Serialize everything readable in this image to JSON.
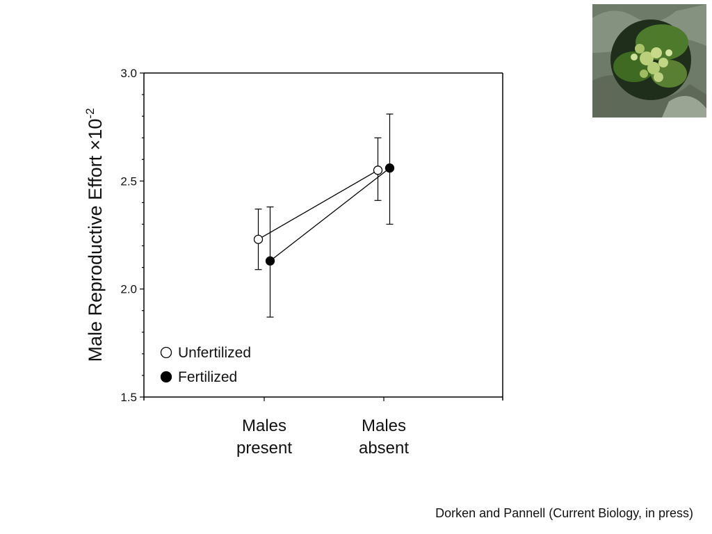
{
  "citation": "Dorken and Pannell (Current Biology, in press)",
  "chart_data": {
    "type": "line",
    "ylabel_main": "Male Reproductive Effort ×10",
    "ylabel_exp": "-2",
    "ylim": [
      1.5,
      3.0
    ],
    "yticks": [
      "1.5",
      "2.0",
      "2.5",
      "3.0"
    ],
    "categories": [
      {
        "line1": "Males",
        "line2": "present"
      },
      {
        "line1": "Males",
        "line2": "absent"
      }
    ],
    "series": [
      {
        "name": "Unfertilized",
        "marker": "open-circle",
        "color": "#ffffff",
        "values": [
          2.23,
          2.55
        ],
        "error_low": [
          2.09,
          2.41
        ],
        "error_high": [
          2.37,
          2.7
        ]
      },
      {
        "name": "Fertilized",
        "marker": "filled-circle",
        "color": "#000000",
        "values": [
          2.13,
          2.56
        ],
        "error_low": [
          1.87,
          2.3
        ],
        "error_high": [
          2.38,
          2.81
        ]
      }
    ],
    "legend_position": "bottom-left",
    "grid": false
  },
  "photo": {
    "icon": "plant-flower-photo"
  }
}
